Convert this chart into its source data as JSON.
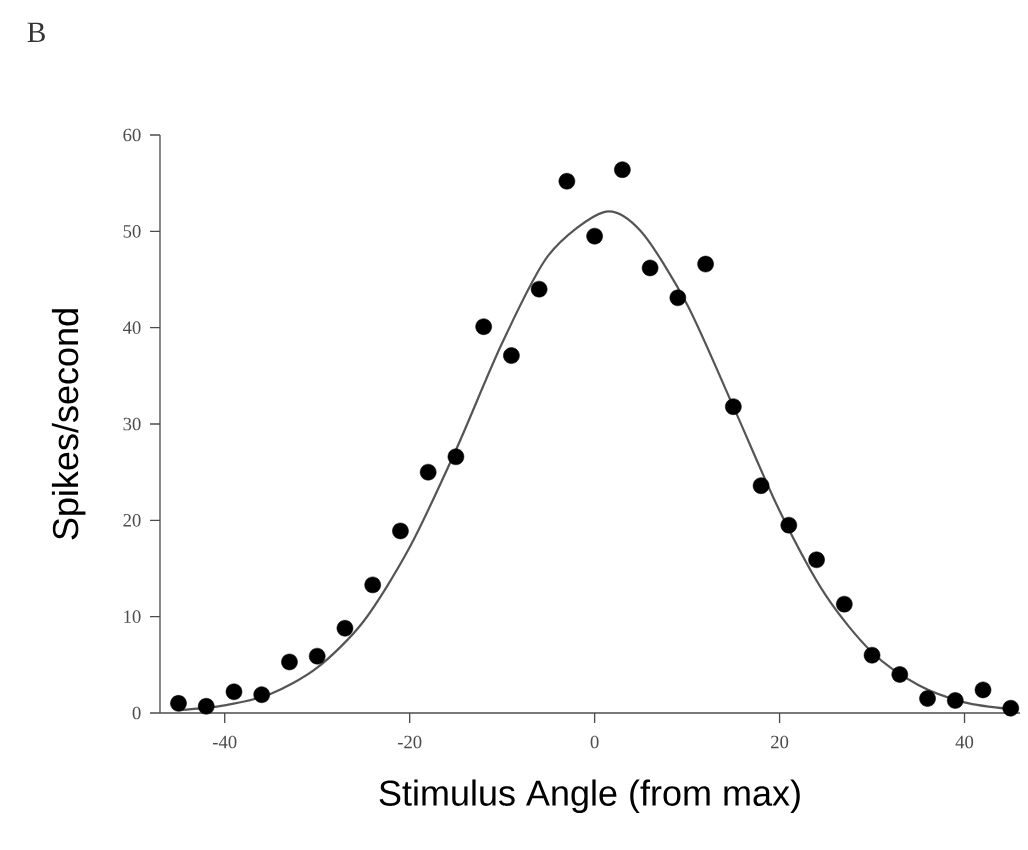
{
  "chart_data": {
    "type": "scatter",
    "xlabel": "Stimulus Angle (from max)",
    "ylabel": "Spikes/second",
    "annotations": [
      "B"
    ],
    "xlim": [
      -47,
      46
    ],
    "ylim": [
      0,
      60
    ],
    "xticks": [
      -40,
      -20,
      0,
      20,
      40
    ],
    "yticks": [
      0,
      10,
      20,
      30,
      40,
      50,
      60
    ],
    "series": [
      {
        "marker": "circle",
        "color": "#000000",
        "x": [
          -45,
          -42,
          -39,
          -36,
          -33,
          -30,
          -27,
          -24,
          -21,
          -18,
          -15,
          -12,
          -9,
          -6,
          -3,
          0,
          3,
          6,
          9,
          12,
          15,
          18,
          21,
          24,
          27,
          30,
          33,
          36,
          39,
          42,
          45
        ],
        "values": [
          1.0,
          0.7,
          2.2,
          1.9,
          5.3,
          5.9,
          8.8,
          13.3,
          18.9,
          25.0,
          26.6,
          40.1,
          37.1,
          44.0,
          55.2,
          49.5,
          56.4,
          46.2,
          43.1,
          46.6,
          31.8,
          23.6,
          19.5,
          15.9,
          11.3,
          6.0,
          4.0,
          1.5,
          1.3,
          2.4,
          0.5
        ]
      },
      {
        "type": "line",
        "marker": "none",
        "color": "#555555",
        "x": [
          -45,
          -40,
          -35,
          -30,
          -25,
          -20,
          -15,
          -10,
          -5,
          1,
          5,
          10,
          15,
          20,
          25,
          30,
          35,
          40,
          45
        ],
        "values": [
          0.3,
          0.8,
          2.0,
          4.7,
          9.5,
          17.2,
          27.3,
          38.4,
          47.5,
          52.0,
          50.0,
          42.4,
          31.8,
          21.0,
          12.2,
          6.3,
          2.9,
          1.1,
          0.4
        ]
      }
    ]
  }
}
